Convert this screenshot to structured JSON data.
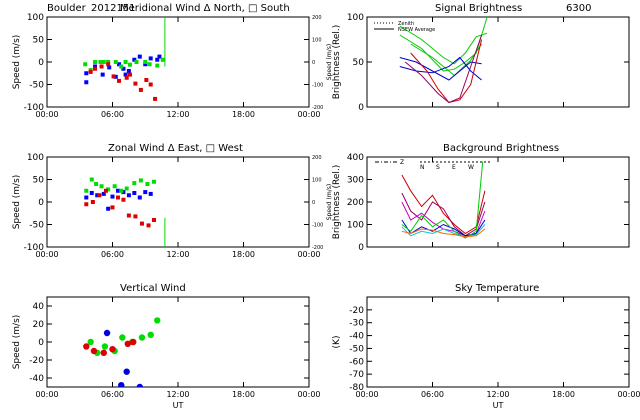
{
  "header": {
    "site": "Boulder",
    "date_code": "2012151",
    "wavelength": "6300"
  },
  "chart_data": [
    {
      "id": "meridional",
      "type": "scatter",
      "title": "Meridional Wind   Δ North, □ South",
      "ylabel": "Speed (m/s)",
      "ylabel_right": "Speed (m/s)",
      "xlim": [
        0,
        24
      ],
      "ylim": [
        -100,
        100
      ],
      "yticks": [
        -100,
        -50,
        0,
        50,
        100
      ],
      "yticks_right": [
        "200",
        "100",
        "0",
        "-100",
        "-200"
      ],
      "xticks": [
        "00:00",
        "06:00",
        "12:00",
        "18:00",
        "00:00"
      ],
      "series": [
        {
          "color": "#0000ff",
          "points": [
            [
              3.6,
              -25
            ],
            [
              3.6,
              -45
            ],
            [
              4.4,
              -10
            ],
            [
              5.1,
              -28
            ],
            [
              5.7,
              -12
            ],
            [
              6.3,
              -33
            ],
            [
              6.6,
              -5
            ],
            [
              7.0,
              -15
            ],
            [
              7.2,
              -28
            ],
            [
              7.5,
              -20
            ],
            [
              8.0,
              5
            ],
            [
              8.5,
              12
            ],
            [
              9.0,
              -5
            ],
            [
              9.5,
              8
            ],
            [
              10.1,
              5
            ],
            [
              10.3,
              12
            ]
          ]
        },
        {
          "color": "#00dd00",
          "points": [
            [
              3.5,
              -5
            ],
            [
              4.0,
              -18
            ],
            [
              4.4,
              0
            ],
            [
              4.9,
              0
            ],
            [
              5.2,
              0
            ],
            [
              5.6,
              0
            ],
            [
              6.3,
              0
            ],
            [
              6.8,
              -10
            ],
            [
              7.2,
              0
            ],
            [
              7.6,
              -6
            ],
            [
              8.2,
              0
            ],
            [
              9.0,
              0
            ],
            [
              9.4,
              -5
            ],
            [
              10.1,
              -8
            ],
            [
              10.6,
              5
            ]
          ]
        },
        {
          "color": "#dd0000",
          "points": [
            [
              4.0,
              -22
            ],
            [
              4.4,
              -15
            ],
            [
              5.0,
              -10
            ],
            [
              5.6,
              -5
            ],
            [
              6.1,
              -32
            ],
            [
              6.6,
              -42
            ],
            [
              7.3,
              -35
            ],
            [
              7.6,
              -28
            ],
            [
              8.1,
              -48
            ],
            [
              8.6,
              -62
            ],
            [
              9.1,
              -40
            ],
            [
              9.5,
              -50
            ],
            [
              9.9,
              -82
            ]
          ]
        }
      ],
      "line_series": [
        {
          "color": "#00dd00",
          "points": [
            [
              10.8,
              -10
            ],
            [
              10.8,
              100
            ]
          ]
        }
      ]
    },
    {
      "id": "signal",
      "type": "line",
      "title": "Signal Brightness",
      "ylabel": "Brightness (Rel.)",
      "xlim": [
        0,
        24
      ],
      "ylim": [
        0,
        100
      ],
      "yticks": [
        0,
        50,
        100
      ],
      "xticks": [],
      "legend": [
        "Zenith",
        "NSEW Average"
      ],
      "series": [
        {
          "color": "#00cc00",
          "points": [
            [
              3.0,
              90
            ],
            [
              5.0,
              75
            ],
            [
              7.0,
              55
            ],
            [
              8.0,
              48
            ],
            [
              9.0,
              60
            ],
            [
              10.0,
              78
            ],
            [
              11.0,
              82
            ]
          ]
        },
        {
          "color": "#00cc00",
          "points": [
            [
              3.0,
              80
            ],
            [
              5.0,
              65
            ],
            [
              7.0,
              40
            ],
            [
              8.0,
              42
            ],
            [
              9.0,
              50
            ],
            [
              10.0,
              60
            ],
            [
              11.0,
              100
            ]
          ]
        },
        {
          "color": "#00cc00",
          "points": [
            [
              4.0,
              70
            ],
            [
              6.0,
              55
            ],
            [
              8.0,
              35
            ],
            [
              9.5,
              52
            ],
            [
              10.5,
              70
            ]
          ]
        },
        {
          "color": "#0000cc",
          "points": [
            [
              3.0,
              55
            ],
            [
              4.5,
              50
            ],
            [
              6.0,
              40
            ],
            [
              7.5,
              30
            ],
            [
              8.5,
              40
            ],
            [
              9.5,
              50
            ],
            [
              10.5,
              48
            ]
          ]
        },
        {
          "color": "#0000cc",
          "points": [
            [
              3.0,
              45
            ],
            [
              4.5,
              40
            ],
            [
              6.0,
              38
            ],
            [
              7.5,
              45
            ],
            [
              8.5,
              55
            ],
            [
              9.5,
              40
            ],
            [
              10.5,
              30
            ]
          ]
        },
        {
          "color": "#cc0000",
          "points": [
            [
              4.0,
              60
            ],
            [
              5.5,
              40
            ],
            [
              6.5,
              20
            ],
            [
              7.5,
              5
            ],
            [
              8.5,
              8
            ],
            [
              9.5,
              25
            ],
            [
              10.5,
              75
            ]
          ]
        },
        {
          "color": "#990066",
          "points": [
            [
              3.5,
              50
            ],
            [
              5.0,
              35
            ],
            [
              6.5,
              15
            ],
            [
              7.5,
              5
            ],
            [
              8.5,
              10
            ],
            [
              9.5,
              45
            ],
            [
              10.5,
              80
            ]
          ]
        }
      ]
    },
    {
      "id": "zonal",
      "type": "scatter",
      "title": "Zonal Wind      Δ East, □ West",
      "ylabel": "Speed (m/s)",
      "ylabel_right": "Speed (m/s)",
      "xlim": [
        0,
        24
      ],
      "ylim": [
        -100,
        100
      ],
      "yticks": [
        -100,
        -50,
        0,
        50,
        100
      ],
      "yticks_right": [
        "200",
        "100",
        "0",
        "-100",
        "-200"
      ],
      "xticks": [
        "00:00",
        "06:00",
        "12:00",
        "18:00",
        "00:00"
      ],
      "series": [
        {
          "color": "#0000ff",
          "points": [
            [
              3.6,
              10
            ],
            [
              4.1,
              20
            ],
            [
              4.6,
              15
            ],
            [
              5.2,
              18
            ],
            [
              5.6,
              -15
            ],
            [
              6.0,
              12
            ],
            [
              6.5,
              25
            ],
            [
              7.0,
              22
            ],
            [
              7.5,
              15
            ],
            [
              8.0,
              20
            ],
            [
              8.5,
              10
            ],
            [
              9.0,
              22
            ],
            [
              9.5,
              18
            ]
          ]
        },
        {
          "color": "#00dd00",
          "points": [
            [
              3.6,
              25
            ],
            [
              4.1,
              50
            ],
            [
              4.5,
              40
            ],
            [
              5.0,
              35
            ],
            [
              5.6,
              28
            ],
            [
              6.2,
              35
            ],
            [
              6.8,
              25
            ],
            [
              7.3,
              30
            ],
            [
              8.0,
              42
            ],
            [
              8.6,
              48
            ],
            [
              9.2,
              40
            ],
            [
              9.8,
              45
            ]
          ]
        },
        {
          "color": "#dd0000",
          "points": [
            [
              3.6,
              -5
            ],
            [
              4.2,
              0
            ],
            [
              4.8,
              15
            ],
            [
              5.4,
              25
            ],
            [
              6.0,
              -12
            ],
            [
              6.5,
              10
            ],
            [
              7.0,
              5
            ],
            [
              7.5,
              -30
            ],
            [
              8.1,
              -32
            ],
            [
              8.7,
              -48
            ],
            [
              9.3,
              -52
            ],
            [
              9.8,
              -40
            ]
          ]
        }
      ],
      "line_series": [
        {
          "color": "#00dd00",
          "points": [
            [
              10.8,
              -35
            ],
            [
              10.8,
              -100
            ]
          ]
        }
      ]
    },
    {
      "id": "background",
      "type": "line",
      "title": "Background Brightness",
      "ylabel": "Brightness (Rel.)",
      "xlim": [
        0,
        24
      ],
      "ylim": [
        0,
        400
      ],
      "yticks": [
        0,
        100,
        200,
        300,
        400
      ],
      "xticks": [],
      "legend": [
        "Z",
        "N",
        "S",
        "E",
        "W"
      ],
      "series": [
        {
          "color": "#cc0000",
          "points": [
            [
              3.2,
              320
            ],
            [
              4.0,
              250
            ],
            [
              5.0,
              180
            ],
            [
              6.0,
              230
            ],
            [
              7.0,
              150
            ],
            [
              8.0,
              100
            ],
            [
              9.0,
              60
            ],
            [
              10.0,
              90
            ],
            [
              10.8,
              250
            ]
          ]
        },
        {
          "color": "#990066",
          "points": [
            [
              3.2,
              240
            ],
            [
              4.0,
              160
            ],
            [
              5.0,
              120
            ],
            [
              6.0,
              200
            ],
            [
              7.0,
              170
            ],
            [
              8.0,
              90
            ],
            [
              9.0,
              50
            ],
            [
              10.0,
              80
            ],
            [
              10.8,
              200
            ]
          ]
        },
        {
          "color": "#cc00cc",
          "points": [
            [
              3.2,
              200
            ],
            [
              4.0,
              120
            ],
            [
              5.0,
              150
            ],
            [
              6.0,
              110
            ],
            [
              7.0,
              80
            ],
            [
              8.0,
              70
            ],
            [
              9.0,
              50
            ],
            [
              10.0,
              60
            ],
            [
              10.8,
              160
            ]
          ]
        },
        {
          "color": "#0000cc",
          "points": [
            [
              3.2,
              120
            ],
            [
              4.0,
              60
            ],
            [
              5.0,
              90
            ],
            [
              6.0,
              70
            ],
            [
              7.0,
              100
            ],
            [
              8.0,
              80
            ],
            [
              9.0,
              50
            ],
            [
              10.0,
              60
            ],
            [
              10.8,
              120
            ]
          ]
        },
        {
          "color": "#00cccc",
          "points": [
            [
              3.2,
              90
            ],
            [
              4.0,
              50
            ],
            [
              5.0,
              70
            ],
            [
              6.0,
              60
            ],
            [
              7.0,
              80
            ],
            [
              8.0,
              60
            ],
            [
              9.0,
              45
            ],
            [
              10.0,
              55
            ],
            [
              10.8,
              100
            ]
          ]
        },
        {
          "color": "#00cc00",
          "points": [
            [
              3.2,
              100
            ],
            [
              4.0,
              70
            ],
            [
              5.0,
              140
            ],
            [
              6.0,
              90
            ],
            [
              7.0,
              120
            ],
            [
              8.0,
              70
            ],
            [
              9.0,
              40
            ],
            [
              10.0,
              70
            ],
            [
              10.6,
              380
            ]
          ]
        },
        {
          "color": "#ff6600",
          "points": [
            [
              3.2,
              70
            ],
            [
              4.0,
              60
            ],
            [
              5.0,
              80
            ],
            [
              6.0,
              75
            ],
            [
              7.0,
              60
            ],
            [
              8.0,
              55
            ],
            [
              9.0,
              45
            ],
            [
              10.0,
              50
            ],
            [
              10.8,
              80
            ]
          ]
        }
      ]
    },
    {
      "id": "vertical",
      "type": "scatter",
      "title": "Vertical Wind",
      "ylabel": "Speed (m/s)",
      "xlim": [
        0,
        24
      ],
      "ylim": [
        -50,
        50
      ],
      "yticks": [
        -40,
        -20,
        0,
        20,
        40
      ],
      "xticks": [
        "00:00",
        "06:00",
        "12:00",
        "18:00",
        "00:00"
      ],
      "xlabel": "UT",
      "series": [
        {
          "color": "#00dd00",
          "points": [
            [
              4.0,
              0
            ],
            [
              4.6,
              -12
            ],
            [
              5.3,
              -5
            ],
            [
              6.2,
              -10
            ],
            [
              6.9,
              5
            ],
            [
              7.8,
              0
            ],
            [
              8.7,
              5
            ],
            [
              9.5,
              8
            ],
            [
              10.1,
              24
            ]
          ]
        },
        {
          "color": "#dd0000",
          "points": [
            [
              3.6,
              -5
            ],
            [
              4.3,
              -10
            ],
            [
              5.2,
              -12
            ],
            [
              6.0,
              -8
            ],
            [
              7.4,
              -2
            ],
            [
              7.9,
              0
            ]
          ]
        },
        {
          "color": "#0000dd",
          "points": [
            [
              5.5,
              10
            ],
            [
              7.3,
              -33
            ],
            [
              6.8,
              -48
            ],
            [
              8.5,
              -50
            ]
          ]
        }
      ]
    },
    {
      "id": "sky",
      "type": "line",
      "title": "Sky Temperature",
      "ylabel": "(K)",
      "xlim": [
        0,
        24
      ],
      "ylim": [
        -80,
        -10
      ],
      "yticks": [
        -80,
        -70,
        -60,
        -50,
        -40,
        -30,
        -20
      ],
      "xticks": [
        "00:00",
        "06:00",
        "12:00",
        "18:00",
        "00:00"
      ],
      "xlabel": "UT",
      "series": []
    }
  ]
}
